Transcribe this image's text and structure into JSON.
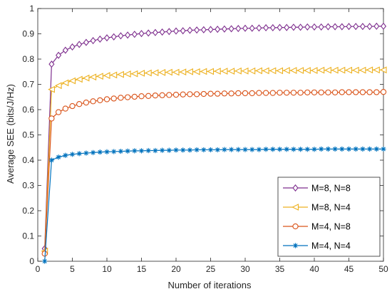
{
  "chart_data": {
    "type": "line",
    "xlabel": "Number of iterations",
    "ylabel": "Average SEE (bits/J/Hz)",
    "xlim": [
      0,
      50
    ],
    "ylim": [
      0,
      1
    ],
    "xticks": [
      0,
      5,
      10,
      15,
      20,
      25,
      30,
      35,
      40,
      45,
      50
    ],
    "yticks": [
      0,
      0.1,
      0.2,
      0.3,
      0.4,
      0.5,
      0.6,
      0.7,
      0.8,
      0.9,
      1
    ],
    "grid": false,
    "legend_position": "bottom-right",
    "x": [
      1,
      2,
      3,
      4,
      5,
      6,
      7,
      8,
      9,
      10,
      11,
      12,
      13,
      14,
      15,
      16,
      17,
      18,
      19,
      20,
      21,
      22,
      23,
      24,
      25,
      26,
      27,
      28,
      29,
      30,
      31,
      32,
      33,
      34,
      35,
      36,
      37,
      38,
      39,
      40,
      41,
      42,
      43,
      44,
      45,
      46,
      47,
      48,
      49,
      50
    ],
    "series": [
      {
        "name": "M=8, N=8",
        "color": "#7E2F8E",
        "marker": "diamond",
        "values": [
          0.05,
          0.78,
          0.815,
          0.835,
          0.848,
          0.858,
          0.866,
          0.873,
          0.879,
          0.884,
          0.888,
          0.892,
          0.895,
          0.898,
          0.901,
          0.903,
          0.905,
          0.907,
          0.909,
          0.911,
          0.912,
          0.914,
          0.915,
          0.916,
          0.917,
          0.918,
          0.919,
          0.92,
          0.921,
          0.922,
          0.922,
          0.923,
          0.924,
          0.924,
          0.925,
          0.925,
          0.926,
          0.926,
          0.927,
          0.927,
          0.927,
          0.928,
          0.928,
          0.928,
          0.929,
          0.929,
          0.929,
          0.929,
          0.93,
          0.93
        ]
      },
      {
        "name": "M=8, N=4",
        "color": "#EDB120",
        "marker": "triangle-left",
        "values": [
          0.04,
          0.68,
          0.695,
          0.706,
          0.714,
          0.72,
          0.725,
          0.729,
          0.732,
          0.735,
          0.737,
          0.739,
          0.741,
          0.742,
          0.744,
          0.745,
          0.746,
          0.747,
          0.748,
          0.748,
          0.749,
          0.75,
          0.75,
          0.751,
          0.751,
          0.752,
          0.752,
          0.752,
          0.753,
          0.753,
          0.753,
          0.754,
          0.754,
          0.754,
          0.754,
          0.755,
          0.755,
          0.755,
          0.755,
          0.755,
          0.756,
          0.756,
          0.756,
          0.756,
          0.756,
          0.756,
          0.756,
          0.757,
          0.757,
          0.757
        ]
      },
      {
        "name": "M=4, N=8",
        "color": "#D95319",
        "marker": "circle",
        "values": [
          0.03,
          0.565,
          0.59,
          0.604,
          0.614,
          0.622,
          0.628,
          0.633,
          0.637,
          0.641,
          0.644,
          0.647,
          0.649,
          0.651,
          0.653,
          0.654,
          0.656,
          0.657,
          0.658,
          0.659,
          0.66,
          0.661,
          0.661,
          0.662,
          0.663,
          0.663,
          0.664,
          0.664,
          0.665,
          0.665,
          0.665,
          0.666,
          0.666,
          0.666,
          0.667,
          0.667,
          0.667,
          0.667,
          0.668,
          0.668,
          0.668,
          0.668,
          0.668,
          0.669,
          0.669,
          0.669,
          0.669,
          0.669,
          0.669,
          0.67
        ]
      },
      {
        "name": "M=4, N=4",
        "color": "#0072BD",
        "marker": "asterisk",
        "values": [
          0.0,
          0.4,
          0.412,
          0.419,
          0.423,
          0.426,
          0.428,
          0.43,
          0.432,
          0.433,
          0.434,
          0.435,
          0.436,
          0.437,
          0.437,
          0.438,
          0.438,
          0.439,
          0.439,
          0.44,
          0.44,
          0.44,
          0.441,
          0.441,
          0.441,
          0.441,
          0.442,
          0.442,
          0.442,
          0.442,
          0.442,
          0.442,
          0.443,
          0.443,
          0.443,
          0.443,
          0.443,
          0.443,
          0.443,
          0.443,
          0.444,
          0.444,
          0.444,
          0.444,
          0.444,
          0.444,
          0.444,
          0.444,
          0.444,
          0.444
        ]
      }
    ]
  }
}
